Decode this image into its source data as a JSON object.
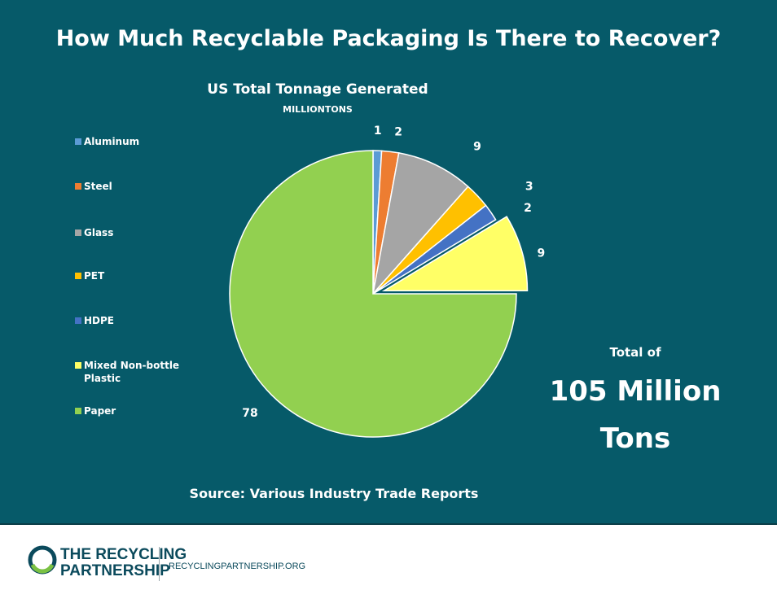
{
  "page_title": "How Much Recyclable Packaging Is There to Recover?",
  "total": {
    "label": "Total of",
    "value_line1": "105 Million",
    "value_line2": "Tons"
  },
  "source": "Source:  Various Industry Trade Reports",
  "footer": {
    "logo_line1": "THE RECYCLING",
    "logo_line2": "PARTNERSHIP",
    "url": "RECYCLINGPARTNERSHIP.ORG"
  },
  "chart_data": {
    "type": "pie",
    "title": "US Total Tonnage Generated",
    "subtitle": "MILLIONTONS",
    "legend_position": "left",
    "categories": [
      "Aluminum",
      "Steel",
      "Glass",
      "PET",
      "HDPE",
      "Mixed Non-bottle Plastic",
      "Paper"
    ],
    "values": [
      1,
      2,
      9,
      3,
      2,
      9,
      78
    ],
    "colors": [
      "#5b9bd5",
      "#ed7d31",
      "#a5a5a5",
      "#ffc000",
      "#4472c4",
      "#ffff66",
      "#92d050"
    ],
    "exploded_slice": "Mixed Non-bottle Plastic"
  }
}
